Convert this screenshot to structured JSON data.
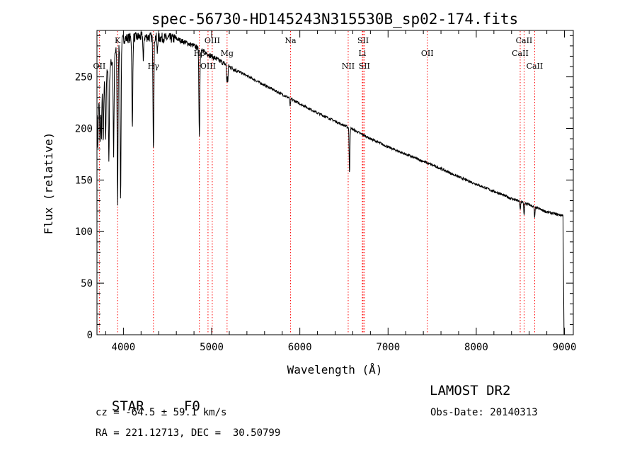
{
  "chart_data": {
    "type": "line",
    "title": "spec-56730-HD145243N315530B_sp02-174.fits",
    "xlabel": "Wavelength (Å)",
    "ylabel": "Flux (relative)",
    "xlim": [
      3700,
      9100
    ],
    "ylim": [
      0,
      295
    ],
    "xticks": [
      4000,
      5000,
      6000,
      7000,
      8000,
      9000
    ],
    "yticks": [
      0,
      50,
      100,
      150,
      200,
      250
    ],
    "grid": false,
    "line_color": "#000000",
    "marker_color": "#ff0000",
    "continuum": {
      "x": [
        3700,
        3800,
        3900,
        4000,
        4200,
        4400,
        4600,
        4800,
        5000,
        5200,
        5400,
        5600,
        5800,
        6000,
        6200,
        6400,
        6600,
        6800,
        7000,
        7200,
        7400,
        7600,
        7800,
        8000,
        8200,
        8400,
        8600,
        8800,
        8950
      ],
      "y": [
        215,
        250,
        272,
        287,
        289,
        288,
        287,
        280,
        270,
        260,
        251,
        242,
        233,
        224,
        215,
        207,
        199,
        190,
        182,
        175,
        168,
        161,
        153,
        146,
        139,
        132,
        126,
        119,
        116
      ]
    },
    "absorption_features": [
      {
        "x": 3710,
        "depth": 35
      },
      {
        "x": 3735,
        "depth": 45
      },
      {
        "x": 3750,
        "depth": 40
      },
      {
        "x": 3771,
        "depth": 55
      },
      {
        "x": 3798,
        "depth": 60
      },
      {
        "x": 3835,
        "depth": 90
      },
      {
        "x": 3889,
        "depth": 95
      },
      {
        "x": 3934,
        "depth": 150
      },
      {
        "x": 3968,
        "depth": 150
      },
      {
        "x": 4101,
        "depth": 90
      },
      {
        "x": 4226,
        "depth": 25
      },
      {
        "x": 4340,
        "depth": 105
      },
      {
        "x": 4383,
        "depth": 15
      },
      {
        "x": 4861,
        "depth": 85
      },
      {
        "x": 5172,
        "depth": 15
      },
      {
        "x": 5183,
        "depth": 15
      },
      {
        "x": 5890,
        "depth": 8
      },
      {
        "x": 6563,
        "depth": 45
      },
      {
        "x": 8498,
        "depth": 8
      },
      {
        "x": 8542,
        "depth": 12
      },
      {
        "x": 8662,
        "depth": 10
      }
    ],
    "end_drop": {
      "x_start": 8985,
      "x_end": 8995,
      "y_end": 0
    },
    "spectral_lines": [
      {
        "label": "OII",
        "x": 3727,
        "row": 3
      },
      {
        "label": "K",
        "x": 3934,
        "row": 1
      },
      {
        "label": "Hγ",
        "x": 4340,
        "row": 3
      },
      {
        "label": "Hβ",
        "x": 4861,
        "row": 2
      },
      {
        "label": "OIII",
        "x": 4959,
        "row": 3
      },
      {
        "label": "OIII",
        "x": 5007,
        "row": 1
      },
      {
        "label": "Mg",
        "x": 5175,
        "row": 2
      },
      {
        "label": "Na",
        "x": 5894,
        "row": 1
      },
      {
        "label": "NII",
        "x": 6548,
        "row": 3
      },
      {
        "label": "SII",
        "x": 6717,
        "row": 1
      },
      {
        "label": "Li",
        "x": 6708,
        "row": 2
      },
      {
        "label": "SII",
        "x": 6731,
        "row": 3
      },
      {
        "label": "OII",
        "x": 7445,
        "row": 2
      },
      {
        "label": "CaII",
        "x": 8542,
        "row": 1
      },
      {
        "label": "CaII",
        "x": 8498,
        "row": 2
      },
      {
        "label": "CaII",
        "x": 8662,
        "row": 3
      }
    ]
  },
  "info": {
    "class_label": "STAR",
    "subclass": "F0",
    "survey": "LAMOST DR2",
    "redshift_line": "cz = -64.5 ± 59.1 km/s",
    "obs_date": "Obs-Date: 20140313",
    "coords": "RA = 221.12713, DEC =  30.50799"
  }
}
